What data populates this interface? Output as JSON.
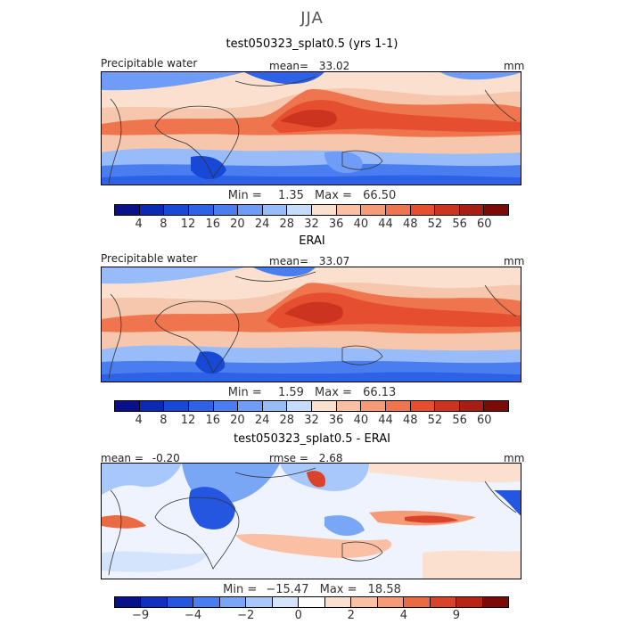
{
  "suptitle": "JJA",
  "panels": [
    {
      "title": "test050323_splat0.5 (yrs 1-1)",
      "left_label": "Precipitable water",
      "stat_label": "mean=",
      "stat_value": "33.02",
      "extra_label": "",
      "extra_value": "",
      "unit": "mm",
      "min_label": "Min =",
      "min_value": "1.35",
      "max_label": "Max =",
      "max_value": "66.50"
    },
    {
      "title": "ERAI",
      "left_label": "Precipitable water",
      "stat_label": "mean=",
      "stat_value": "33.07",
      "extra_label": "",
      "extra_value": "",
      "unit": "mm",
      "min_label": "Min =",
      "min_value": "1.59",
      "max_label": "Max =",
      "max_value": "66.13"
    },
    {
      "title": "test050323_splat0.5 - ERAI",
      "left_label": "mean =",
      "left_value": "-0.20",
      "stat_label": "rmse =",
      "stat_value": "2.68",
      "unit": "mm",
      "min_label": "Min =",
      "min_value": "−15.47",
      "max_label": "Max =",
      "max_value": "18.58"
    }
  ],
  "colorbar_abs": {
    "colors": [
      "#08108a",
      "#0a2ab4",
      "#1848d6",
      "#2e62e6",
      "#4a7ef0",
      "#6e9cf6",
      "#98bcfa",
      "#c6dcfd",
      "#fbe0d0",
      "#fbc0a4",
      "#f69b78",
      "#ef754f",
      "#e54f30",
      "#cc3420",
      "#a81e14",
      "#7c0b08"
    ],
    "ticks": [
      "4",
      "8",
      "12",
      "16",
      "20",
      "24",
      "28",
      "32",
      "36",
      "40",
      "44",
      "48",
      "52",
      "56",
      "60"
    ]
  },
  "colorbar_diff": {
    "colors": [
      "#08108a",
      "#1230c0",
      "#2456e0",
      "#4a7ef0",
      "#7aa6f6",
      "#a8c8fb",
      "#d4e4fd",
      "#fdfdfd",
      "#fbe0d0",
      "#fbc0a4",
      "#f69b78",
      "#ea6a44",
      "#d8432a",
      "#b82516",
      "#7c0b08"
    ],
    "ticks": [
      "−9",
      "−4",
      "−2",
      "0",
      "2",
      "4",
      "9"
    ]
  }
}
